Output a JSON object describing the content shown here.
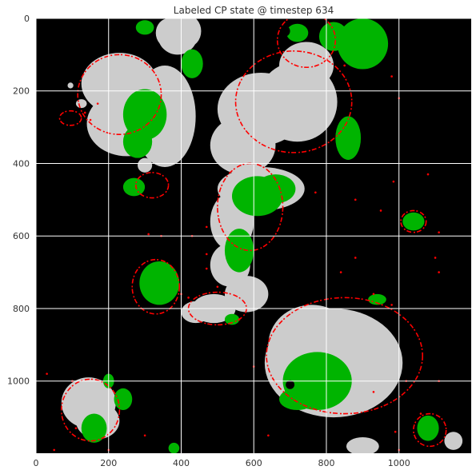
{
  "chart_data": {
    "type": "heatmap",
    "title": "Labeled CP state @ timestep 634",
    "xlabel": "",
    "ylabel": "",
    "xlim": [
      0,
      1199
    ],
    "ylim": [
      1199,
      0
    ],
    "x_ticks": [
      0,
      200,
      400,
      600,
      800,
      1000
    ],
    "y_ticks": [
      0,
      200,
      400,
      600,
      800,
      1000
    ],
    "grid": true,
    "colors": {
      "background": "#000000",
      "gray_region": "#cccccc",
      "green_region": "#00b400",
      "boundary": "#ff0000",
      "grid": "#ffffff"
    },
    "regions": {
      "gray": [
        {
          "cx": 390,
          "cy": 45,
          "rx": 55,
          "ry": 55
        },
        {
          "cx": 365,
          "cy": 40,
          "rx": 35,
          "ry": 40
        },
        {
          "cx": 415,
          "cy": 35,
          "rx": 40,
          "ry": 45
        },
        {
          "cx": 230,
          "cy": 180,
          "rx": 105,
          "ry": 85
        },
        {
          "cx": 250,
          "cy": 290,
          "rx": 110,
          "ry": 90
        },
        {
          "cx": 355,
          "cy": 270,
          "rx": 85,
          "ry": 140
        },
        {
          "cx": 570,
          "cy": 350,
          "rx": 90,
          "ry": 80
        },
        {
          "cx": 620,
          "cy": 250,
          "rx": 120,
          "ry": 100
        },
        {
          "cx": 720,
          "cy": 230,
          "rx": 110,
          "ry": 110
        },
        {
          "cx": 745,
          "cy": 130,
          "rx": 75,
          "ry": 65
        },
        {
          "cx": 620,
          "cy": 470,
          "rx": 120,
          "ry": 60
        },
        {
          "cx": 540,
          "cy": 560,
          "rx": 60,
          "ry": 80
        },
        {
          "cx": 535,
          "cy": 680,
          "rx": 55,
          "ry": 60
        },
        {
          "cx": 580,
          "cy": 760,
          "rx": 60,
          "ry": 50
        },
        {
          "cx": 820,
          "cy": 950,
          "rx": 190,
          "ry": 150
        },
        {
          "cx": 760,
          "cy": 900,
          "rx": 120,
          "ry": 110
        },
        {
          "cx": 300,
          "cy": 405,
          "rx": 20,
          "ry": 20
        },
        {
          "cx": 145,
          "cy": 1060,
          "rx": 75,
          "ry": 70
        },
        {
          "cx": 170,
          "cy": 1110,
          "rx": 60,
          "ry": 50
        },
        {
          "cx": 490,
          "cy": 800,
          "rx": 60,
          "ry": 40
        },
        {
          "cx": 440,
          "cy": 810,
          "rx": 40,
          "ry": 30
        },
        {
          "cx": 900,
          "cy": 1180,
          "rx": 45,
          "ry": 25
        },
        {
          "cx": 1150,
          "cy": 1165,
          "rx": 25,
          "ry": 25
        },
        {
          "cx": 125,
          "cy": 235,
          "rx": 15,
          "ry": 12
        },
        {
          "cx": 95,
          "cy": 185,
          "rx": 8,
          "ry": 8
        }
      ],
      "green": [
        {
          "cx": 300,
          "cy": 265,
          "rx": 60,
          "ry": 70
        },
        {
          "cx": 280,
          "cy": 340,
          "rx": 40,
          "ry": 45
        },
        {
          "cx": 430,
          "cy": 125,
          "rx": 30,
          "ry": 40
        },
        {
          "cx": 900,
          "cy": 70,
          "rx": 70,
          "ry": 70
        },
        {
          "cx": 820,
          "cy": 50,
          "rx": 40,
          "ry": 40
        },
        {
          "cx": 610,
          "cy": 490,
          "rx": 70,
          "ry": 55
        },
        {
          "cx": 660,
          "cy": 470,
          "rx": 55,
          "ry": 40
        },
        {
          "cx": 560,
          "cy": 640,
          "rx": 40,
          "ry": 60
        },
        {
          "cx": 340,
          "cy": 730,
          "rx": 55,
          "ry": 60
        },
        {
          "cx": 270,
          "cy": 465,
          "rx": 30,
          "ry": 25
        },
        {
          "cx": 775,
          "cy": 1000,
          "rx": 95,
          "ry": 80
        },
        {
          "cx": 720,
          "cy": 1050,
          "rx": 50,
          "ry": 30
        },
        {
          "cx": 860,
          "cy": 330,
          "rx": 35,
          "ry": 60
        },
        {
          "cx": 1080,
          "cy": 1130,
          "rx": 30,
          "ry": 35
        },
        {
          "cx": 160,
          "cy": 1130,
          "rx": 35,
          "ry": 40
        },
        {
          "cx": 240,
          "cy": 1050,
          "rx": 25,
          "ry": 30
        },
        {
          "cx": 200,
          "cy": 1000,
          "rx": 15,
          "ry": 20
        },
        {
          "cx": 1040,
          "cy": 560,
          "rx": 30,
          "ry": 25
        },
        {
          "cx": 300,
          "cy": 25,
          "rx": 25,
          "ry": 20
        },
        {
          "cx": 720,
          "cy": 40,
          "rx": 30,
          "ry": 25
        },
        {
          "cx": 380,
          "cy": 1185,
          "rx": 15,
          "ry": 15
        },
        {
          "cx": 940,
          "cy": 775,
          "rx": 25,
          "ry": 15
        },
        {
          "cx": 540,
          "cy": 830,
          "rx": 20,
          "ry": 15
        }
      ],
      "black_holes": [
        {
          "cx": 685,
          "cy": 35,
          "rx": 15,
          "ry": 15
        },
        {
          "cx": 770,
          "cy": 10,
          "rx": 18,
          "ry": 12
        },
        {
          "cx": 700,
          "cy": 1010,
          "rx": 12,
          "ry": 12
        },
        {
          "cx": 1045,
          "cy": 970,
          "rx": 12,
          "ry": 15
        }
      ]
    },
    "boundaries": [
      {
        "cx": 230,
        "cy": 210,
        "rx": 115,
        "ry": 110
      },
      {
        "cx": 710,
        "cy": 230,
        "rx": 160,
        "ry": 140
      },
      {
        "cx": 745,
        "cy": 60,
        "rx": 80,
        "ry": 75
      },
      {
        "cx": 590,
        "cy": 520,
        "rx": 90,
        "ry": 120
      },
      {
        "cx": 850,
        "cy": 930,
        "rx": 215,
        "ry": 160
      },
      {
        "cx": 150,
        "cy": 1080,
        "rx": 80,
        "ry": 85
      },
      {
        "cx": 330,
        "cy": 740,
        "rx": 65,
        "ry": 75
      },
      {
        "cx": 500,
        "cy": 800,
        "rx": 80,
        "ry": 45
      },
      {
        "cx": 1040,
        "cy": 560,
        "rx": 35,
        "ry": 30
      },
      {
        "cx": 1085,
        "cy": 1135,
        "rx": 45,
        "ry": 45
      },
      {
        "cx": 320,
        "cy": 460,
        "rx": 45,
        "ry": 35
      },
      {
        "cx": 95,
        "cy": 275,
        "rx": 30,
        "ry": 20
      }
    ],
    "boundary_dots": [
      [
        135,
        260
      ],
      [
        150,
        280
      ],
      [
        170,
        235
      ],
      [
        310,
        595
      ],
      [
        345,
        600
      ],
      [
        430,
        600
      ],
      [
        400,
        760
      ],
      [
        420,
        770
      ],
      [
        560,
        830
      ],
      [
        930,
        760
      ],
      [
        980,
        790
      ],
      [
        880,
        660
      ],
      [
        1100,
        660
      ],
      [
        1110,
        700
      ],
      [
        985,
        450
      ],
      [
        1000,
        1190
      ],
      [
        1060,
        1090
      ],
      [
        990,
        1140
      ],
      [
        470,
        650
      ],
      [
        200,
        1190
      ],
      [
        300,
        1150
      ],
      [
        470,
        575
      ],
      [
        880,
        500
      ],
      [
        950,
        530
      ],
      [
        840,
        700
      ],
      [
        1020,
        1000
      ],
      [
        1110,
        1000
      ],
      [
        100,
        1000
      ],
      [
        110,
        1130
      ],
      [
        30,
        980
      ],
      [
        50,
        1190
      ],
      [
        640,
        1150
      ],
      [
        930,
        1030
      ],
      [
        600,
        960
      ],
      [
        500,
        740
      ],
      [
        470,
        690
      ],
      [
        770,
        480
      ],
      [
        850,
        130
      ],
      [
        1000,
        220
      ],
      [
        980,
        160
      ],
      [
        1080,
        430
      ],
      [
        1110,
        590
      ]
    ]
  }
}
